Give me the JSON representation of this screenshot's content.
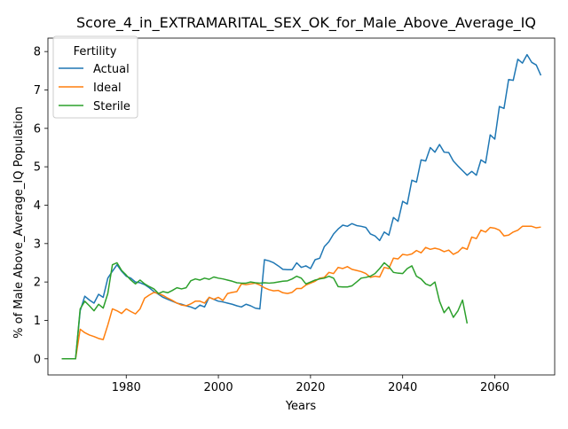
{
  "chart_data": {
    "type": "line",
    "title": "Score_4_in_EXTRAMARITAL_SEX_OK_for_Male_Above_Average_IQ",
    "xlabel": "Years",
    "ylabel": "% of Male Above_Average_IQ Population",
    "xlim": [
      1963,
      2073
    ],
    "ylim": [
      -0.42,
      8.35
    ],
    "xticks": [
      1980,
      2000,
      2020,
      2040,
      2060
    ],
    "yticks": [
      0,
      1,
      2,
      3,
      4,
      5,
      6,
      7,
      8
    ],
    "grid": false,
    "legend": {
      "title": "Fertility",
      "placement": "top-left"
    },
    "series": [
      {
        "name": "Actual",
        "color": "#1f77b4",
        "points": [
          [
            1966,
            0
          ],
          [
            1967,
            0
          ],
          [
            1968,
            0
          ],
          [
            1969,
            0
          ],
          [
            1970,
            1.25
          ],
          [
            1971,
            1.63
          ],
          [
            1972,
            1.53
          ],
          [
            1973,
            1.45
          ],
          [
            1974,
            1.68
          ],
          [
            1975,
            1.6
          ],
          [
            1976,
            2.1
          ],
          [
            1977,
            2.28
          ],
          [
            1978,
            2.45
          ],
          [
            1979,
            2.28
          ],
          [
            1980,
            2.15
          ],
          [
            1981,
            2.1
          ],
          [
            1982,
            2.0
          ],
          [
            1983,
            1.98
          ],
          [
            1984,
            1.93
          ],
          [
            1985,
            1.85
          ],
          [
            1986,
            1.75
          ],
          [
            1987,
            1.68
          ],
          [
            1988,
            1.6
          ],
          [
            1989,
            1.55
          ],
          [
            1990,
            1.5
          ],
          [
            1991,
            1.45
          ],
          [
            1992,
            1.42
          ],
          [
            1993,
            1.38
          ],
          [
            1994,
            1.35
          ],
          [
            1995,
            1.3
          ],
          [
            1996,
            1.4
          ],
          [
            1997,
            1.35
          ],
          [
            1998,
            1.6
          ],
          [
            1999,
            1.55
          ],
          [
            2000,
            1.5
          ],
          [
            2001,
            1.48
          ],
          [
            2002,
            1.45
          ],
          [
            2003,
            1.42
          ],
          [
            2004,
            1.38
          ],
          [
            2005,
            1.35
          ],
          [
            2006,
            1.42
          ],
          [
            2007,
            1.38
          ],
          [
            2008,
            1.32
          ],
          [
            2009,
            1.3
          ],
          [
            2010,
            2.58
          ],
          [
            2011,
            2.55
          ],
          [
            2012,
            2.5
          ],
          [
            2013,
            2.42
          ],
          [
            2014,
            2.33
          ],
          [
            2015,
            2.32
          ],
          [
            2016,
            2.32
          ],
          [
            2017,
            2.5
          ],
          [
            2018,
            2.38
          ],
          [
            2019,
            2.42
          ],
          [
            2020,
            2.35
          ],
          [
            2021,
            2.58
          ],
          [
            2022,
            2.62
          ],
          [
            2023,
            2.92
          ],
          [
            2024,
            3.05
          ],
          [
            2025,
            3.25
          ],
          [
            2026,
            3.38
          ],
          [
            2027,
            3.48
          ],
          [
            2028,
            3.45
          ],
          [
            2029,
            3.52
          ],
          [
            2030,
            3.47
          ],
          [
            2031,
            3.45
          ],
          [
            2032,
            3.42
          ],
          [
            2033,
            3.25
          ],
          [
            2034,
            3.2
          ],
          [
            2035,
            3.08
          ],
          [
            2036,
            3.3
          ],
          [
            2037,
            3.22
          ],
          [
            2038,
            3.68
          ],
          [
            2039,
            3.58
          ],
          [
            2040,
            4.1
          ],
          [
            2041,
            4.03
          ],
          [
            2042,
            4.65
          ],
          [
            2043,
            4.6
          ],
          [
            2044,
            5.18
          ],
          [
            2045,
            5.15
          ],
          [
            2046,
            5.5
          ],
          [
            2047,
            5.38
          ],
          [
            2048,
            5.58
          ],
          [
            2049,
            5.38
          ],
          [
            2050,
            5.37
          ],
          [
            2051,
            5.15
          ],
          [
            2052,
            5.02
          ],
          [
            2053,
            4.9
          ],
          [
            2054,
            4.78
          ],
          [
            2055,
            4.88
          ],
          [
            2056,
            4.78
          ],
          [
            2057,
            5.18
          ],
          [
            2058,
            5.1
          ],
          [
            2059,
            5.83
          ],
          [
            2060,
            5.72
          ],
          [
            2061,
            6.57
          ],
          [
            2062,
            6.52
          ],
          [
            2063,
            7.27
          ],
          [
            2064,
            7.25
          ],
          [
            2065,
            7.8
          ],
          [
            2066,
            7.7
          ],
          [
            2067,
            7.92
          ],
          [
            2068,
            7.72
          ],
          [
            2069,
            7.65
          ],
          [
            2070,
            7.38
          ]
        ]
      },
      {
        "name": "Ideal",
        "color": "#ff7f0e",
        "points": [
          [
            1966,
            0
          ],
          [
            1967,
            0
          ],
          [
            1968,
            0
          ],
          [
            1969,
            0
          ],
          [
            1970,
            0.77
          ],
          [
            1971,
            0.68
          ],
          [
            1972,
            0.62
          ],
          [
            1973,
            0.58
          ],
          [
            1974,
            0.53
          ],
          [
            1975,
            0.5
          ],
          [
            1976,
            0.88
          ],
          [
            1977,
            1.3
          ],
          [
            1978,
            1.25
          ],
          [
            1979,
            1.18
          ],
          [
            1980,
            1.3
          ],
          [
            1981,
            1.23
          ],
          [
            1982,
            1.17
          ],
          [
            1983,
            1.3
          ],
          [
            1984,
            1.58
          ],
          [
            1985,
            1.66
          ],
          [
            1986,
            1.73
          ],
          [
            1987,
            1.7
          ],
          [
            1988,
            1.65
          ],
          [
            1989,
            1.58
          ],
          [
            1990,
            1.52
          ],
          [
            1991,
            1.45
          ],
          [
            1992,
            1.4
          ],
          [
            1993,
            1.38
          ],
          [
            1994,
            1.43
          ],
          [
            1995,
            1.5
          ],
          [
            1996,
            1.5
          ],
          [
            1997,
            1.45
          ],
          [
            1998,
            1.6
          ],
          [
            1999,
            1.55
          ],
          [
            2000,
            1.6
          ],
          [
            2001,
            1.52
          ],
          [
            2002,
            1.7
          ],
          [
            2003,
            1.73
          ],
          [
            2004,
            1.75
          ],
          [
            2005,
            1.95
          ],
          [
            2006,
            1.93
          ],
          [
            2007,
            1.95
          ],
          [
            2008,
            1.97
          ],
          [
            2009,
            1.92
          ],
          [
            2010,
            1.85
          ],
          [
            2011,
            1.8
          ],
          [
            2012,
            1.77
          ],
          [
            2013,
            1.78
          ],
          [
            2014,
            1.72
          ],
          [
            2015,
            1.7
          ],
          [
            2016,
            1.73
          ],
          [
            2017,
            1.83
          ],
          [
            2018,
            1.83
          ],
          [
            2019,
            1.92
          ],
          [
            2020,
            1.97
          ],
          [
            2021,
            2.02
          ],
          [
            2022,
            2.1
          ],
          [
            2023,
            2.12
          ],
          [
            2024,
            2.25
          ],
          [
            2025,
            2.22
          ],
          [
            2026,
            2.38
          ],
          [
            2027,
            2.35
          ],
          [
            2028,
            2.4
          ],
          [
            2029,
            2.33
          ],
          [
            2030,
            2.3
          ],
          [
            2031,
            2.27
          ],
          [
            2032,
            2.22
          ],
          [
            2033,
            2.12
          ],
          [
            2034,
            2.15
          ],
          [
            2035,
            2.13
          ],
          [
            2036,
            2.38
          ],
          [
            2037,
            2.35
          ],
          [
            2038,
            2.62
          ],
          [
            2039,
            2.6
          ],
          [
            2040,
            2.72
          ],
          [
            2041,
            2.7
          ],
          [
            2042,
            2.73
          ],
          [
            2043,
            2.82
          ],
          [
            2044,
            2.76
          ],
          [
            2045,
            2.9
          ],
          [
            2046,
            2.85
          ],
          [
            2047,
            2.88
          ],
          [
            2048,
            2.85
          ],
          [
            2049,
            2.79
          ],
          [
            2050,
            2.83
          ],
          [
            2051,
            2.72
          ],
          [
            2052,
            2.78
          ],
          [
            2053,
            2.9
          ],
          [
            2054,
            2.85
          ],
          [
            2055,
            3.17
          ],
          [
            2056,
            3.13
          ],
          [
            2057,
            3.35
          ],
          [
            2058,
            3.3
          ],
          [
            2059,
            3.42
          ],
          [
            2060,
            3.4
          ],
          [
            2061,
            3.35
          ],
          [
            2062,
            3.2
          ],
          [
            2063,
            3.22
          ],
          [
            2064,
            3.3
          ],
          [
            2065,
            3.35
          ],
          [
            2066,
            3.45
          ],
          [
            2067,
            3.45
          ],
          [
            2068,
            3.45
          ],
          [
            2069,
            3.41
          ],
          [
            2070,
            3.43
          ]
        ]
      },
      {
        "name": "Sterile",
        "color": "#2ca02c",
        "points": [
          [
            1966,
            0
          ],
          [
            1967,
            0
          ],
          [
            1968,
            0
          ],
          [
            1969,
            0
          ],
          [
            1970,
            1.3
          ],
          [
            1971,
            1.5
          ],
          [
            1972,
            1.38
          ],
          [
            1973,
            1.25
          ],
          [
            1974,
            1.42
          ],
          [
            1975,
            1.32
          ],
          [
            1976,
            1.7
          ],
          [
            1977,
            2.45
          ],
          [
            1978,
            2.5
          ],
          [
            1979,
            2.3
          ],
          [
            1980,
            2.18
          ],
          [
            1981,
            2.05
          ],
          [
            1982,
            1.95
          ],
          [
            1983,
            2.05
          ],
          [
            1984,
            1.95
          ],
          [
            1985,
            1.88
          ],
          [
            1986,
            1.82
          ],
          [
            1987,
            1.7
          ],
          [
            1988,
            1.75
          ],
          [
            1989,
            1.72
          ],
          [
            1990,
            1.78
          ],
          [
            1991,
            1.85
          ],
          [
            1992,
            1.82
          ],
          [
            1993,
            1.85
          ],
          [
            1994,
            2.03
          ],
          [
            1995,
            2.08
          ],
          [
            1996,
            2.05
          ],
          [
            1997,
            2.1
          ],
          [
            1998,
            2.07
          ],
          [
            1999,
            2.13
          ],
          [
            2000,
            2.1
          ],
          [
            2001,
            2.08
          ],
          [
            2002,
            2.05
          ],
          [
            2003,
            2.02
          ],
          [
            2004,
            1.98
          ],
          [
            2005,
            1.97
          ],
          [
            2006,
            1.97
          ],
          [
            2007,
            2.0
          ],
          [
            2008,
            1.98
          ],
          [
            2009,
            1.97
          ],
          [
            2010,
            1.98
          ],
          [
            2011,
            1.97
          ],
          [
            2012,
            1.98
          ],
          [
            2013,
            2.0
          ],
          [
            2014,
            2.02
          ],
          [
            2015,
            2.03
          ],
          [
            2016,
            2.08
          ],
          [
            2017,
            2.15
          ],
          [
            2018,
            2.1
          ],
          [
            2019,
            1.95
          ],
          [
            2020,
            2.0
          ],
          [
            2021,
            2.05
          ],
          [
            2022,
            2.08
          ],
          [
            2023,
            2.1
          ],
          [
            2024,
            2.15
          ],
          [
            2025,
            2.1
          ],
          [
            2026,
            1.88
          ],
          [
            2027,
            1.87
          ],
          [
            2028,
            1.87
          ],
          [
            2029,
            1.9
          ],
          [
            2030,
            2.0
          ],
          [
            2031,
            2.1
          ],
          [
            2032,
            2.12
          ],
          [
            2033,
            2.15
          ],
          [
            2034,
            2.22
          ],
          [
            2035,
            2.35
          ],
          [
            2036,
            2.5
          ],
          [
            2037,
            2.4
          ],
          [
            2038,
            2.25
          ],
          [
            2039,
            2.23
          ],
          [
            2040,
            2.22
          ],
          [
            2041,
            2.35
          ],
          [
            2042,
            2.42
          ],
          [
            2043,
            2.15
          ],
          [
            2044,
            2.08
          ],
          [
            2045,
            1.95
          ],
          [
            2046,
            1.9
          ],
          [
            2047,
            2.0
          ],
          [
            2048,
            1.5
          ],
          [
            2049,
            1.2
          ],
          [
            2050,
            1.35
          ],
          [
            2051,
            1.08
          ],
          [
            2052,
            1.25
          ],
          [
            2053,
            1.53
          ],
          [
            2054,
            0.92
          ]
        ]
      }
    ]
  }
}
